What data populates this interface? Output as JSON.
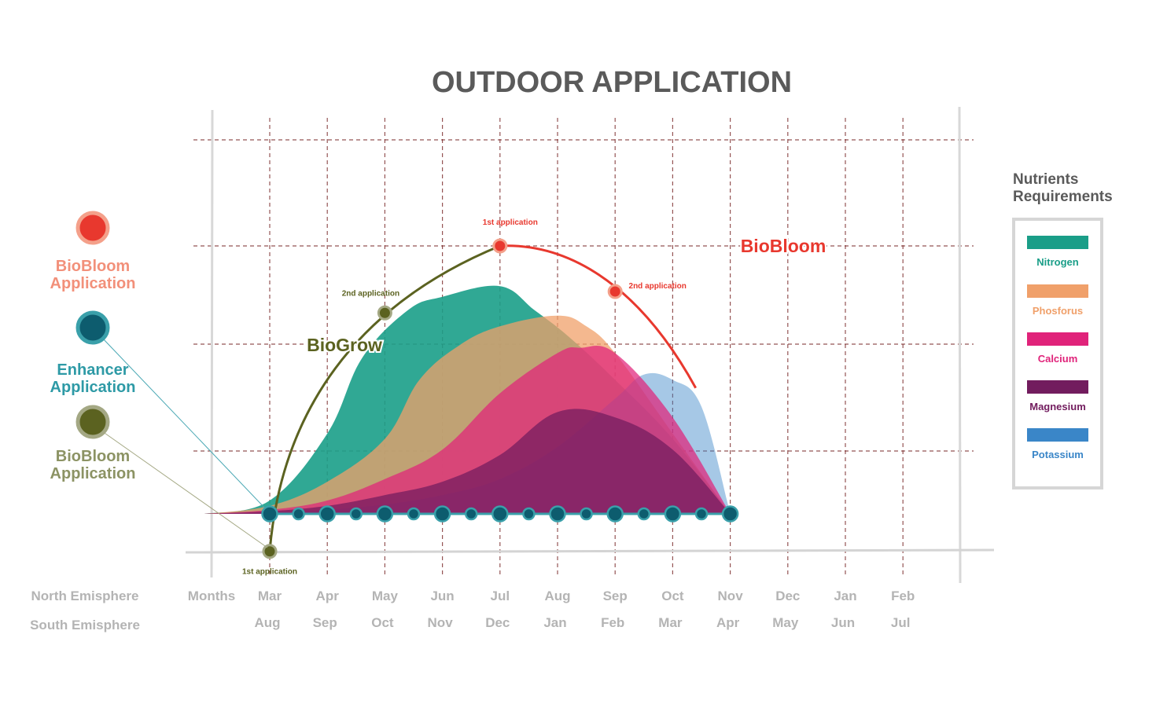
{
  "title": "OUTDOOR APPLICATION",
  "colors": {
    "title": "#5a5a5a",
    "grid": "#7a2a2a",
    "frame": "#d0d0d0",
    "axis_text": "#b4b4b4",
    "biobloom": "#e8382e",
    "biogrow": "#5b6220",
    "enhancer": "#0d5c6e",
    "enhancer_ring": "#3aa0aa"
  },
  "left_legend": [
    {
      "label_line1": "BioBloom",
      "label_line2": "Application",
      "fill": "#e8382e",
      "ring": "#f4a08a",
      "text_color": "#f2907a"
    },
    {
      "label_line1": "Enhancer",
      "label_line2": "Application",
      "fill": "#0d5c6e",
      "ring": "#3aa0aa",
      "text_color": "#2e9aa6"
    },
    {
      "label_line1": "BioBloom",
      "label_line2": "Application",
      "fill": "#5b6220",
      "ring": "#a4a884",
      "text_color": "#8c9364"
    }
  ],
  "nutrients_legend": {
    "title_line1": "Nutrients",
    "title_line2": "Requirements",
    "items": [
      {
        "label": "Nitrogen",
        "color": "#1a9e88"
      },
      {
        "label": "Phosforus",
        "color": "#f0a06a"
      },
      {
        "label": "Calcium",
        "color": "#e0237a"
      },
      {
        "label": "Magnesium",
        "color": "#721c5e"
      },
      {
        "label": "Potassium",
        "color": "#3a86c8"
      }
    ]
  },
  "axis": {
    "row1_label": "North Emisphere",
    "row2_label": "South Emisphere",
    "months_label": "Months",
    "north_months": [
      "Mar",
      "Apr",
      "May",
      "Jun",
      "Jul",
      "Aug",
      "Sep",
      "Oct",
      "Nov",
      "Dec",
      "Jan",
      "Feb"
    ],
    "south_months": [
      "Aug",
      "Sep",
      "Oct",
      "Nov",
      "Dec",
      "Jan",
      "Feb",
      "Mar",
      "Apr",
      "May",
      "Jun",
      "Jul"
    ]
  },
  "chart_data": {
    "type": "area",
    "title": "OUTDOOR APPLICATION",
    "x_label": "Months",
    "categories": [
      "Mar",
      "Apr",
      "May",
      "Jun",
      "Jul",
      "Aug",
      "Sep",
      "Oct",
      "Nov",
      "Dec",
      "Jan",
      "Feb"
    ],
    "ylim": [
      0,
      100
    ],
    "grid": true,
    "legend_position": "right",
    "series": [
      {
        "name": "Nitrogen",
        "color": "#1a9e88",
        "x": [
          -1.0,
          0,
          1.0,
          1.6,
          2.4,
          3.0,
          4.0,
          4.6,
          5.2,
          6.0,
          7.0,
          8.0
        ],
        "values": [
          0,
          5,
          30,
          58,
          76,
          81,
          85,
          76,
          66,
          50,
          28,
          0
        ]
      },
      {
        "name": "Phosforus",
        "color": "#f0a06a",
        "x": [
          -1.0,
          0,
          1.0,
          2.0,
          2.6,
          3.3,
          4.0,
          5.0,
          5.5,
          6.0,
          7.0,
          8.0
        ],
        "values": [
          0,
          3,
          12,
          28,
          50,
          63,
          70,
          74,
          70,
          60,
          30,
          0
        ]
      },
      {
        "name": "Calcium",
        "color": "#e0237a",
        "x": [
          -1.0,
          0,
          1.0,
          2.0,
          3.0,
          4.0,
          5.0,
          5.4,
          6.0,
          7.0,
          8.0
        ],
        "values": [
          0,
          1.5,
          5,
          13,
          24,
          45,
          60,
          62,
          60,
          36,
          0
        ]
      },
      {
        "name": "Magnesium",
        "color": "#721c5e",
        "x": [
          -1.0,
          0,
          1.0,
          2.0,
          3.0,
          4.0,
          5.0,
          6.0,
          7.0,
          8.0
        ],
        "values": [
          0,
          1,
          3,
          7,
          12,
          22,
          38,
          36,
          24,
          0
        ]
      },
      {
        "name": "Potassium",
        "color": "#3a86c8",
        "x": [
          -1.0,
          0,
          1.0,
          2.0,
          3.0,
          4.0,
          5.0,
          6.0,
          6.5,
          7.0,
          7.5,
          8.0
        ],
        "values": [
          0,
          0.5,
          1.5,
          3.5,
          7,
          13,
          25,
          43,
          52,
          50,
          40,
          0
        ]
      }
    ],
    "applications": {
      "BioGrow": {
        "label": "BioGrow",
        "points": [
          {
            "x": 0,
            "label": "1st application"
          },
          {
            "x": 2,
            "label": "2nd application"
          }
        ]
      },
      "BioBloom": {
        "label": "BioBloom",
        "points": [
          {
            "x": 4,
            "label": "1st application"
          },
          {
            "x": 6,
            "label": "2nd application"
          }
        ]
      },
      "Enhancer": {
        "x": [
          0,
          0.5,
          1,
          1.5,
          2,
          2.5,
          3,
          3.5,
          4,
          4.5,
          5,
          5.5,
          6,
          6.5,
          7,
          7.5,
          8
        ]
      }
    },
    "annotations": [
      {
        "text": "1st application"
      },
      {
        "text": "2nd application"
      },
      {
        "text": "1st application"
      },
      {
        "text": "2nd application"
      }
    ]
  }
}
